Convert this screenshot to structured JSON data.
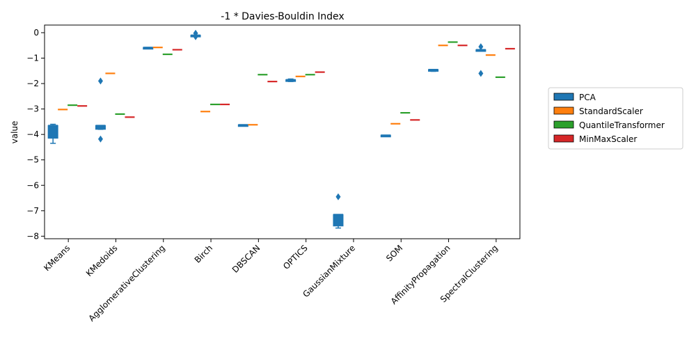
{
  "chart_data": {
    "type": "box",
    "title": "-1 * Davies-Bouldin Index",
    "xlabel": "",
    "ylabel": "value",
    "ylim": [
      -8.1,
      0.3
    ],
    "yticks": [
      0,
      -1,
      -2,
      -3,
      -4,
      -5,
      -6,
      -7,
      -8
    ],
    "grid": false,
    "legend_position": "right",
    "categories": [
      "KMeans",
      "KMedoids",
      "AgglomerativeClustering",
      "Birch",
      "DBSCAN",
      "OPTICS",
      "GaussianMixture",
      "SOM",
      "AffinityPropagation",
      "SpectralClustering"
    ],
    "series": [
      {
        "name": "PCA",
        "color": "#1f77b4",
        "boxes": [
          {
            "whislo": -4.35,
            "q1": -4.15,
            "med": -3.65,
            "q3": -3.65,
            "whishi": -3.6,
            "fliers": []
          },
          {
            "whislo": -3.8,
            "q1": -3.8,
            "med": -3.65,
            "q3": -3.65,
            "whishi": -3.65,
            "fliers": [
              -1.9,
              -4.18
            ]
          },
          {
            "whislo": -0.58,
            "q1": -0.58,
            "med": -0.58,
            "q3": -0.58,
            "whishi": -0.58,
            "fliers": []
          },
          {
            "whislo": -0.1,
            "q1": -0.1,
            "med": -0.1,
            "q3": -0.1,
            "whishi": -0.1,
            "fliers": [
              -0.02,
              -0.16
            ]
          },
          {
            "whislo": -3.62,
            "q1": -3.62,
            "med": -3.62,
            "q3": -3.62,
            "whishi": -3.62,
            "fliers": []
          },
          {
            "whislo": -1.92,
            "q1": -1.92,
            "med": -1.85,
            "q3": -1.85,
            "whishi": -1.82,
            "fliers": []
          },
          {
            "whislo": -7.68,
            "q1": -7.6,
            "med": -7.15,
            "q3": -7.15,
            "whishi": -7.15,
            "fliers": [
              -6.45
            ]
          },
          {
            "whislo": -4.06,
            "q1": -4.06,
            "med": -4.03,
            "q3": -4.03,
            "whishi": -4.03,
            "fliers": []
          },
          {
            "whislo": -1.52,
            "q1": -1.52,
            "med": -1.45,
            "q3": -1.45,
            "whishi": -1.45,
            "fliers": []
          },
          {
            "whislo": -0.67,
            "q1": -0.67,
            "med": -0.67,
            "q3": -0.67,
            "whishi": -0.67,
            "fliers": [
              -0.55,
              -1.6
            ]
          }
        ]
      },
      {
        "name": "StandardScaler",
        "color": "#ff7f0e",
        "values": [
          -3.02,
          -1.6,
          -0.58,
          -3.1,
          -3.62,
          -1.72,
          null,
          -3.58,
          -0.5,
          -0.88
        ]
      },
      {
        "name": "QuantileTransformer",
        "color": "#2ca02c",
        "values": [
          -2.85,
          -3.2,
          -0.85,
          -2.82,
          -1.65,
          -1.65,
          null,
          -3.15,
          -0.37,
          -1.75
        ]
      },
      {
        "name": "MinMaxScaler",
        "color": "#d62728",
        "values": [
          -2.88,
          -3.32,
          -0.67,
          -2.82,
          -1.92,
          -1.55,
          null,
          -3.43,
          -0.5,
          -0.63
        ]
      }
    ]
  }
}
